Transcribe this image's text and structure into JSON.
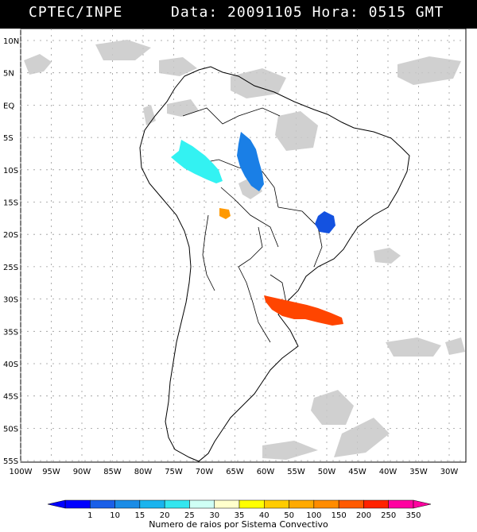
{
  "header": {
    "source": "CPTEC/INPE",
    "data_label": "Data:",
    "date": "20091105",
    "hora_label": "Hora:",
    "time": "0515 GMT"
  },
  "map": {
    "lat_labels": [
      "10N",
      "5N",
      "EQ",
      "5S",
      "10S",
      "15S",
      "20S",
      "25S",
      "30S",
      "35S",
      "40S",
      "45S",
      "50S",
      "55S"
    ],
    "lon_labels": [
      "100W",
      "95W",
      "90W",
      "85W",
      "80W",
      "75W",
      "70W",
      "65W",
      "60W",
      "55W",
      "50W",
      "45W",
      "40W",
      "35W",
      "30W"
    ],
    "features": [
      {
        "name": "convective-system-amazon-west",
        "color": "#33f2f2"
      },
      {
        "name": "convective-system-amazon-central",
        "color": "#1a7fe6"
      },
      {
        "name": "convective-system-minas-gerais",
        "color": "#1452e0"
      },
      {
        "name": "convective-system-bolivia",
        "color": "#ff9900"
      },
      {
        "name": "convective-system-rio-grande-do-sul",
        "color": "#ff4500"
      }
    ]
  },
  "legend": {
    "title": "Numero de raios por Sistema Convectivo",
    "ticks": [
      "1",
      "10",
      "15",
      "20",
      "25",
      "30",
      "35",
      "40",
      "50",
      "100",
      "150",
      "200",
      "250",
      "350"
    ],
    "colors": [
      "#0000ff",
      "#1a5fe8",
      "#1a8ce6",
      "#19b4ee",
      "#33e6ef",
      "#cffff5",
      "#ffffcc",
      "#ffff00",
      "#ffcc00",
      "#ffaa00",
      "#ff8c00",
      "#ff5a00",
      "#ff2200",
      "#ff00a0"
    ]
  }
}
